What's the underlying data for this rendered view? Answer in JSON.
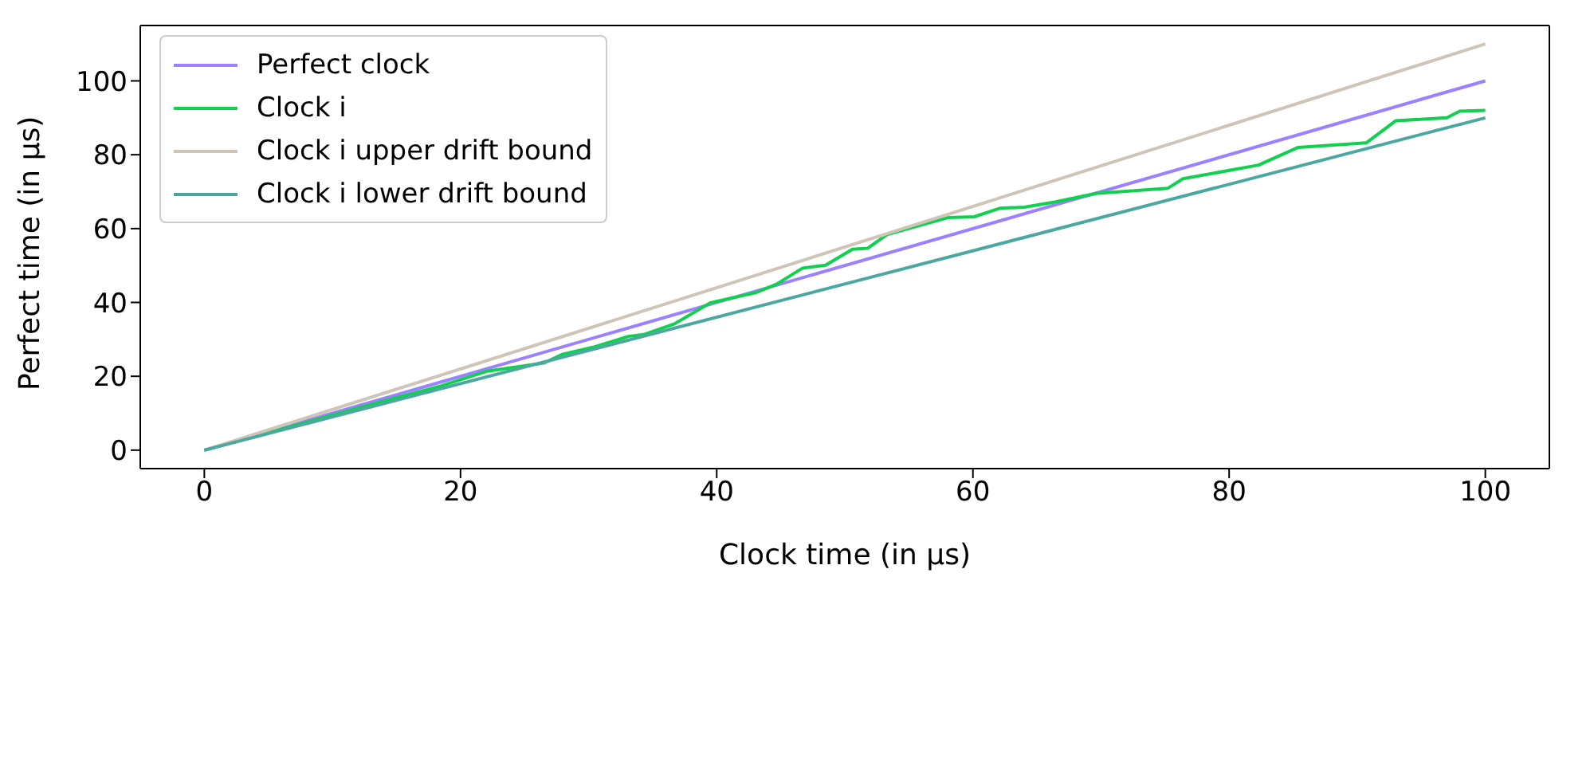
{
  "chart_data": {
    "type": "line",
    "xlabel": "Clock time (in µs)",
    "ylabel": "Perfect time (in µs)",
    "xlim": [
      -5,
      105
    ],
    "ylim": [
      -5,
      115
    ],
    "xticks": [
      0,
      20,
      40,
      60,
      80,
      100
    ],
    "yticks": [
      0,
      20,
      40,
      60,
      80,
      100
    ],
    "legend": "top left",
    "marker": "none",
    "line_style": "solid",
    "series": [
      {
        "name": "Perfect clock",
        "color": "#9b80ff",
        "x": [
          0,
          100
        ],
        "values": [
          0,
          100
        ]
      },
      {
        "name": "Clock i",
        "color": "#10d050",
        "x": [
          0,
          10,
          15,
          18.5,
          22.1,
          26.5,
          28,
          30.4,
          33.1,
          34.3,
          36.7,
          39.5,
          43.1,
          44.7,
          46.7,
          48.5,
          50.6,
          51.8,
          53.3,
          55.7,
          58.1,
          60.1,
          62.1,
          64,
          66.4,
          69.6,
          75.2,
          76.4,
          82.3,
          85.4,
          90.7,
          93,
          97,
          98,
          100
        ],
        "values": [
          0,
          9.5,
          14.2,
          17.4,
          21.4,
          23.6,
          26,
          27.9,
          30.8,
          31.3,
          34.2,
          39.9,
          42.7,
          45,
          49.3,
          50.1,
          54.4,
          54.7,
          58.4,
          60.7,
          63,
          63.2,
          65.5,
          65.8,
          67.2,
          69.5,
          70.9,
          73.5,
          77.2,
          82,
          83.2,
          89.2,
          90,
          91.8,
          92
        ]
      },
      {
        "name": "Clock i upper drift bound",
        "color": "#cfc4b8",
        "x": [
          0,
          100
        ],
        "values": [
          0,
          110
        ]
      },
      {
        "name": "Clock i lower drift bound",
        "color": "#4aa8a0",
        "x": [
          0,
          100
        ],
        "values": [
          0,
          90
        ]
      }
    ]
  }
}
